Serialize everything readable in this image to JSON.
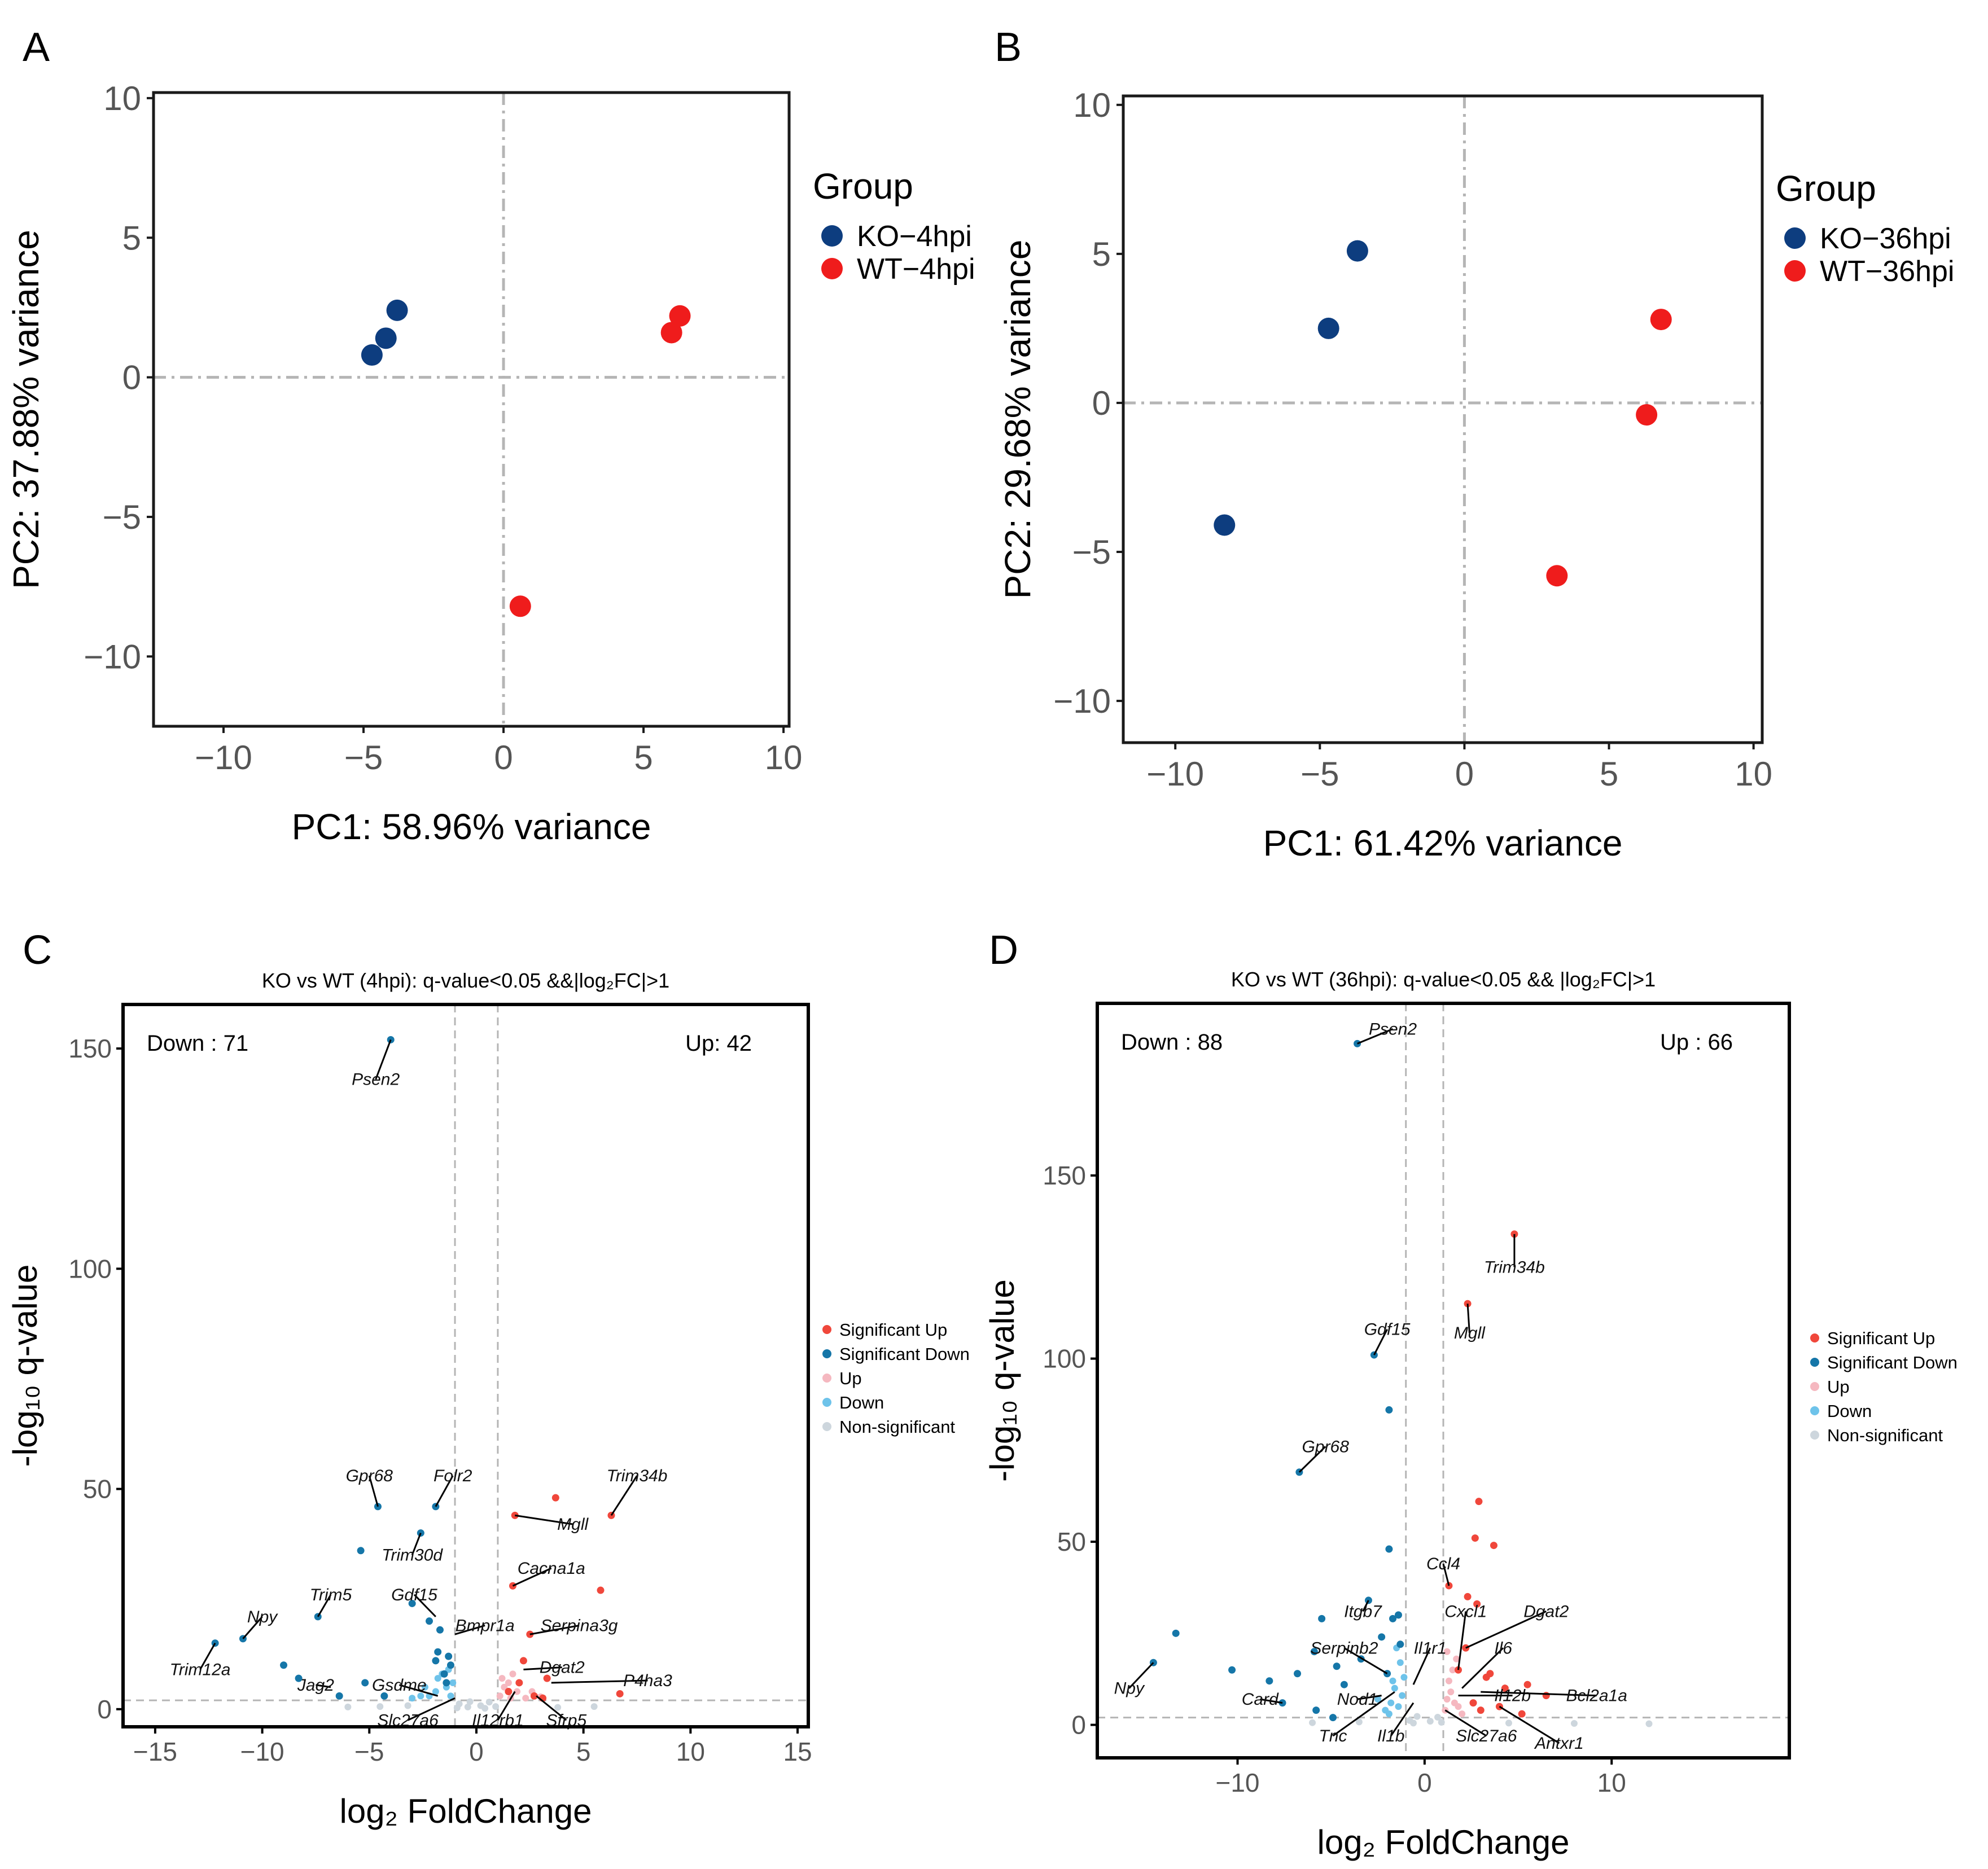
{
  "colors": {
    "ko": "#0d3d7f",
    "wt": "#ef1c1c",
    "sig_up": "#f0473b",
    "sig_down": "#1576a8",
    "up": "#f5b8c0",
    "down": "#6ec3ea",
    "nonsig": "#cdd6dd",
    "ref_line": "#b5b5b5"
  },
  "chart_data": [
    {
      "panel": "A",
      "type": "scatter",
      "title": "",
      "xlabel": "PC1: 58.96% variance",
      "ylabel": "PC2: 37.88% variance",
      "xlim": [
        -12.5,
        10.2
      ],
      "ylim": [
        -12.5,
        10.2
      ],
      "xticks": [
        -10,
        -5,
        0,
        5,
        10
      ],
      "xtick_labels": [
        "−10",
        "−5",
        "0",
        "5",
        "10"
      ],
      "yticks": [
        -10,
        -5,
        0,
        5,
        10
      ],
      "ytick_labels": [
        "−10",
        "−5",
        "0",
        "5",
        "10"
      ],
      "legend_title": "Group",
      "legend_position": "right",
      "series": [
        {
          "name": "KO−4hpi",
          "color_key": "ko",
          "points": [
            [
              -3.8,
              2.4
            ],
            [
              -4.2,
              1.4
            ],
            [
              -4.7,
              0.8
            ]
          ]
        },
        {
          "name": "WT−4hpi",
          "color_key": "wt",
          "points": [
            [
              6.3,
              2.2
            ],
            [
              6.0,
              1.6
            ],
            [
              0.6,
              -8.2
            ]
          ]
        }
      ]
    },
    {
      "panel": "B",
      "type": "scatter",
      "title": "",
      "xlabel": "PC1: 61.42% variance",
      "ylabel": "PC2: 29.68% variance",
      "xlim": [
        -11.8,
        10.3
      ],
      "ylim": [
        -11.4,
        10.3
      ],
      "xticks": [
        -10,
        -5,
        0,
        5,
        10
      ],
      "xtick_labels": [
        "−10",
        "−5",
        "0",
        "5",
        "10"
      ],
      "yticks": [
        -10,
        -5,
        0,
        5,
        10
      ],
      "ytick_labels": [
        "−10",
        "−5",
        "0",
        "5",
        "10"
      ],
      "legend_title": "Group",
      "legend_position": "right",
      "series": [
        {
          "name": "KO−36hpi",
          "color_key": "ko",
          "points": [
            [
              -3.7,
              5.1
            ],
            [
              -4.7,
              2.5
            ],
            [
              -8.3,
              -4.1
            ]
          ]
        },
        {
          "name": "WT−36hpi",
          "color_key": "wt",
          "points": [
            [
              6.8,
              2.8
            ],
            [
              6.3,
              -0.4
            ],
            [
              3.2,
              -5.8
            ]
          ]
        }
      ]
    },
    {
      "panel": "C",
      "type": "scatter",
      "title": "KO vs WT (4hpi): q-value<0.05 &&|log₂FC|>1",
      "xlabel": "log₂ FoldChange",
      "ylabel": "-log₁₀ q-value",
      "xlim": [
        -16.5,
        15.5
      ],
      "ylim": [
        -4,
        160
      ],
      "xticks": [
        -15,
        -10,
        -5,
        0,
        5,
        10,
        15
      ],
      "xtick_labels": [
        "−15",
        "−10",
        "−5",
        "0",
        "5",
        "10",
        "15"
      ],
      "yticks": [
        0,
        50,
        100,
        150
      ],
      "ytick_labels": [
        "0",
        "50",
        "100",
        "150"
      ],
      "vlines": [
        -1,
        1
      ],
      "hline": 2,
      "count_down": "Down : 71",
      "count_up": "Up: 42",
      "legend_position": "right",
      "legend": [
        {
          "label": "Significant Up",
          "color_key": "sig_up"
        },
        {
          "label": "Significant Down",
          "color_key": "sig_down"
        },
        {
          "label": "Up",
          "color_key": "up"
        },
        {
          "label": "Down",
          "color_key": "down"
        },
        {
          "label": "Non-significant",
          "color_key": "nonsig"
        }
      ],
      "points": {
        "sig_up": [
          [
            1.8,
            44
          ],
          [
            2.5,
            17
          ],
          [
            2.2,
            11
          ],
          [
            3.7,
            48
          ],
          [
            5.8,
            27
          ],
          [
            6.3,
            44
          ],
          [
            1.7,
            28
          ],
          [
            3.3,
            7
          ],
          [
            6.7,
            3.5
          ],
          [
            1.5,
            4
          ],
          [
            2.0,
            6
          ],
          [
            2.7,
            3
          ],
          [
            3.1,
            2.5
          ]
        ],
        "sig_down": [
          [
            -4.0,
            152
          ],
          [
            -4.6,
            46
          ],
          [
            -1.9,
            46
          ],
          [
            -2.6,
            40
          ],
          [
            -5.4,
            36
          ],
          [
            -3.0,
            24
          ],
          [
            -7.4,
            21
          ],
          [
            -10.9,
            16
          ],
          [
            -12.2,
            15
          ],
          [
            -2.2,
            20
          ],
          [
            -1.7,
            18
          ],
          [
            -1.3,
            12
          ],
          [
            -1.2,
            10
          ],
          [
            -9.0,
            10
          ],
          [
            -8.3,
            7
          ],
          [
            -6.4,
            3
          ],
          [
            -5.2,
            6
          ],
          [
            -4.3,
            3
          ],
          [
            -1.8,
            13
          ],
          [
            -1.5,
            8
          ],
          [
            -1.4,
            6
          ],
          [
            -1.9,
            11
          ]
        ],
        "up": [
          [
            1.3,
            5
          ],
          [
            1.5,
            6
          ],
          [
            1.7,
            8
          ],
          [
            1.1,
            3
          ],
          [
            1.9,
            4
          ],
          [
            2.3,
            2.5
          ],
          [
            1.2,
            7
          ],
          [
            2.6,
            4
          ],
          [
            1.6,
            2.5
          ],
          [
            3.0,
            2.8
          ]
        ],
        "down": [
          [
            -1.2,
            3
          ],
          [
            -1.4,
            5
          ],
          [
            -1.6,
            8
          ],
          [
            -1.9,
            4
          ],
          [
            -2.2,
            3
          ],
          [
            -1.3,
            9
          ],
          [
            -1.1,
            6
          ],
          [
            -2.6,
            3
          ],
          [
            -3.0,
            2.5
          ],
          [
            -1.8,
            7
          ],
          [
            -2.4,
            5
          ]
        ],
        "nonsig": [
          [
            -0.8,
            1.2
          ],
          [
            -0.4,
            0.5
          ],
          [
            0.2,
            0.8
          ],
          [
            0.6,
            1.6
          ],
          [
            -0.9,
            0.3
          ],
          [
            0.9,
            0.6
          ],
          [
            -0.3,
            1.7
          ],
          [
            0.4,
            0.2
          ],
          [
            -6.0,
            0.5
          ],
          [
            -4.5,
            0.6
          ],
          [
            -3.2,
            0.8
          ],
          [
            3.8,
            0.4
          ],
          [
            5.5,
            0.6
          ]
        ]
      },
      "labels": [
        {
          "text": "Psen2",
          "x": -4.0,
          "y": 152,
          "lx": -4.7,
          "ly": 143
        },
        {
          "text": "Gpr68",
          "x": -4.6,
          "y": 46,
          "lx": -5.0,
          "ly": 53
        },
        {
          "text": "Folr2",
          "x": -1.9,
          "y": 46,
          "lx": -1.1,
          "ly": 53
        },
        {
          "text": "Trim30d",
          "x": -2.6,
          "y": 40,
          "lx": -3.0,
          "ly": 35
        },
        {
          "text": "Trim34b",
          "x": 6.3,
          "y": 44,
          "lx": 7.5,
          "ly": 53
        },
        {
          "text": "Mgll",
          "x": 1.8,
          "y": 44,
          "lx": 4.5,
          "ly": 42
        },
        {
          "text": "Cacna1a",
          "x": 1.7,
          "y": 28,
          "lx": 3.5,
          "ly": 32
        },
        {
          "text": "Trim5",
          "x": -7.4,
          "y": 21,
          "lx": -6.8,
          "ly": 26
        },
        {
          "text": "Gdf15",
          "x": -1.9,
          "y": 21,
          "lx": -2.9,
          "ly": 26
        },
        {
          "text": "Npy",
          "x": -10.9,
          "y": 16,
          "lx": -10.0,
          "ly": 21
        },
        {
          "text": "Bmpr1a",
          "x": -1.0,
          "y": 17,
          "lx": 0.4,
          "ly": 19
        },
        {
          "text": "Serpina3g",
          "x": 2.5,
          "y": 17,
          "lx": 4.8,
          "ly": 19
        },
        {
          "text": "Trim12a",
          "x": -12.2,
          "y": 15,
          "lx": -12.9,
          "ly": 9
        },
        {
          "text": "Dgat2",
          "x": 2.2,
          "y": 9,
          "lx": 4.0,
          "ly": 9.5
        },
        {
          "text": "P4ha3",
          "x": 3.5,
          "y": 6,
          "lx": 8.0,
          "ly": 6.5
        },
        {
          "text": "Jag2",
          "x": -6.8,
          "y": 5,
          "lx": -7.5,
          "ly": 5.5
        },
        {
          "text": "Gsdme",
          "x": -1.8,
          "y": 3,
          "lx": -3.6,
          "ly": 5.5
        },
        {
          "text": "Slc27a6",
          "x": -1.0,
          "y": 2.5,
          "lx": -3.2,
          "ly": -2.5
        },
        {
          "text": "Il12rb1",
          "x": 1.8,
          "y": 4,
          "lx": 1.0,
          "ly": -2.5
        },
        {
          "text": "Sfrp5",
          "x": 2.8,
          "y": 3,
          "lx": 4.2,
          "ly": -2.5
        }
      ]
    },
    {
      "panel": "D",
      "type": "scatter",
      "title": "KO vs WT (36hpi): q-value<0.05 && |log₂FC|>1",
      "xlabel": "log₂ FoldChange",
      "ylabel": "-log₁₀ q-value",
      "xlim": [
        -17.5,
        19.5
      ],
      "ylim": [
        -9,
        197
      ],
      "xticks": [
        -10,
        0,
        10
      ],
      "xtick_labels": [
        "−10",
        "0",
        "10"
      ],
      "yticks": [
        0,
        50,
        100,
        150
      ],
      "ytick_labels": [
        "0",
        "50",
        "100",
        "150"
      ],
      "vlines": [
        -1,
        1
      ],
      "hline": 2,
      "count_down": "Down : 88",
      "count_up": "Up : 66",
      "legend_position": "right",
      "legend": [
        {
          "label": "Significant Up",
          "color_key": "sig_up"
        },
        {
          "label": "Significant Down",
          "color_key": "sig_down"
        },
        {
          "label": "Up",
          "color_key": "up"
        },
        {
          "label": "Down",
          "color_key": "down"
        },
        {
          "label": "Non-significant",
          "color_key": "nonsig"
        }
      ],
      "points": {
        "sig_up": [
          [
            4.8,
            134
          ],
          [
            2.3,
            115
          ],
          [
            2.9,
            61
          ],
          [
            2.7,
            51
          ],
          [
            3.7,
            49
          ],
          [
            2.3,
            35
          ],
          [
            1.3,
            38
          ],
          [
            2.8,
            33
          ],
          [
            2.2,
            21
          ],
          [
            1.8,
            15
          ],
          [
            3.5,
            14
          ],
          [
            4.3,
            10
          ],
          [
            5.5,
            11
          ],
          [
            6.5,
            8
          ],
          [
            2.6,
            6
          ],
          [
            3.0,
            4
          ],
          [
            4.0,
            5
          ],
          [
            5.2,
            3
          ],
          [
            3.3,
            13
          ]
        ],
        "sig_down": [
          [
            -3.6,
            186
          ],
          [
            -2.7,
            101
          ],
          [
            -1.9,
            86
          ],
          [
            -6.7,
            69
          ],
          [
            -1.9,
            48
          ],
          [
            -3.0,
            34
          ],
          [
            -13.3,
            25
          ],
          [
            -14.5,
            17
          ],
          [
            -10.3,
            15
          ],
          [
            -8.3,
            12
          ],
          [
            -6.8,
            14
          ],
          [
            -5.9,
            20
          ],
          [
            -5.5,
            29
          ],
          [
            -4.7,
            16
          ],
          [
            -4.3,
            11
          ],
          [
            -3.4,
            18
          ],
          [
            -2.3,
            24
          ],
          [
            -1.7,
            29
          ],
          [
            -1.4,
            30
          ],
          [
            -1.3,
            22
          ],
          [
            -7.6,
            6
          ],
          [
            -5.8,
            4
          ],
          [
            -4.9,
            2
          ],
          [
            -2.0,
            14
          ]
        ],
        "up": [
          [
            1.2,
            7
          ],
          [
            1.4,
            9
          ],
          [
            1.6,
            6
          ],
          [
            1.1,
            4
          ],
          [
            1.8,
            5
          ],
          [
            1.3,
            12
          ],
          [
            1.5,
            15
          ],
          [
            2.0,
            3
          ],
          [
            1.7,
            18
          ],
          [
            1.2,
            20
          ]
        ],
        "down": [
          [
            -1.2,
            8
          ],
          [
            -1.4,
            5
          ],
          [
            -1.6,
            10
          ],
          [
            -1.8,
            6
          ],
          [
            -1.1,
            13
          ],
          [
            -1.3,
            17
          ],
          [
            -2.1,
            4
          ],
          [
            -2.5,
            7
          ],
          [
            -1.5,
            21
          ],
          [
            -1.9,
            3
          ],
          [
            -1.7,
            12
          ]
        ],
        "nonsig": [
          [
            -0.8,
            1.2
          ],
          [
            -0.4,
            2.3
          ],
          [
            0.3,
            1.0
          ],
          [
            0.7,
            2.1
          ],
          [
            -0.6,
            0.5
          ],
          [
            0.9,
            0.7
          ],
          [
            -3.5,
            0.8
          ],
          [
            -6.0,
            0.6
          ],
          [
            4.5,
            0.5
          ],
          [
            8.0,
            0.4
          ],
          [
            12.0,
            0.3
          ]
        ]
      },
      "labels": [
        {
          "text": "Psen2",
          "x": -3.6,
          "y": 186,
          "lx": -1.7,
          "ly": 190
        },
        {
          "text": "Trim34b",
          "x": 4.8,
          "y": 134,
          "lx": 4.8,
          "ly": 125
        },
        {
          "text": "Mgll",
          "x": 2.3,
          "y": 115,
          "lx": 2.4,
          "ly": 107
        },
        {
          "text": "Gdf15",
          "x": -2.7,
          "y": 101,
          "lx": -2.0,
          "ly": 108
        },
        {
          "text": "Gpr68",
          "x": -6.7,
          "y": 69,
          "lx": -5.3,
          "ly": 76
        },
        {
          "text": "Ccl4",
          "x": 1.3,
          "y": 38,
          "lx": 1.0,
          "ly": 44
        },
        {
          "text": "Itgb7",
          "x": -3.0,
          "y": 34,
          "lx": -3.3,
          "ly": 31
        },
        {
          "text": "Cxcl1",
          "x": 1.8,
          "y": 15,
          "lx": 2.2,
          "ly": 31
        },
        {
          "text": "Dgat2",
          "x": 2.2,
          "y": 21,
          "lx": 6.5,
          "ly": 31
        },
        {
          "text": "Serpinb2",
          "x": -2.0,
          "y": 14,
          "lx": -4.3,
          "ly": 21
        },
        {
          "text": "Il1r1",
          "x": -0.6,
          "y": 11,
          "lx": 0.3,
          "ly": 21
        },
        {
          "text": "Il6",
          "x": 2.0,
          "y": 10,
          "lx": 4.2,
          "ly": 21
        },
        {
          "text": "Npy",
          "x": -14.5,
          "y": 17,
          "lx": -15.8,
          "ly": 10
        },
        {
          "text": "Card",
          "x": -7.6,
          "y": 6,
          "lx": -8.8,
          "ly": 7
        },
        {
          "text": "Nod1",
          "x": -2.3,
          "y": 8,
          "lx": -3.6,
          "ly": 7
        },
        {
          "text": "Il12b",
          "x": 1.8,
          "y": 8,
          "lx": 4.7,
          "ly": 8
        },
        {
          "text": "Bcl2a1a",
          "x": 3.0,
          "y": 9,
          "lx": 9.2,
          "ly": 8
        },
        {
          "text": "Tnc",
          "x": -1.6,
          "y": 9,
          "lx": -4.9,
          "ly": -3
        },
        {
          "text": "Il1b",
          "x": -0.6,
          "y": 6,
          "lx": -1.8,
          "ly": -3
        },
        {
          "text": "Slc27a6",
          "x": 1.1,
          "y": 4,
          "lx": 3.3,
          "ly": -3
        },
        {
          "text": "Antxr1",
          "x": 4.0,
          "y": 5,
          "lx": 7.2,
          "ly": -5
        }
      ]
    }
  ],
  "panels": [
    {
      "letter": "A"
    },
    {
      "letter": "B"
    },
    {
      "letter": "C"
    },
    {
      "letter": "D"
    }
  ]
}
